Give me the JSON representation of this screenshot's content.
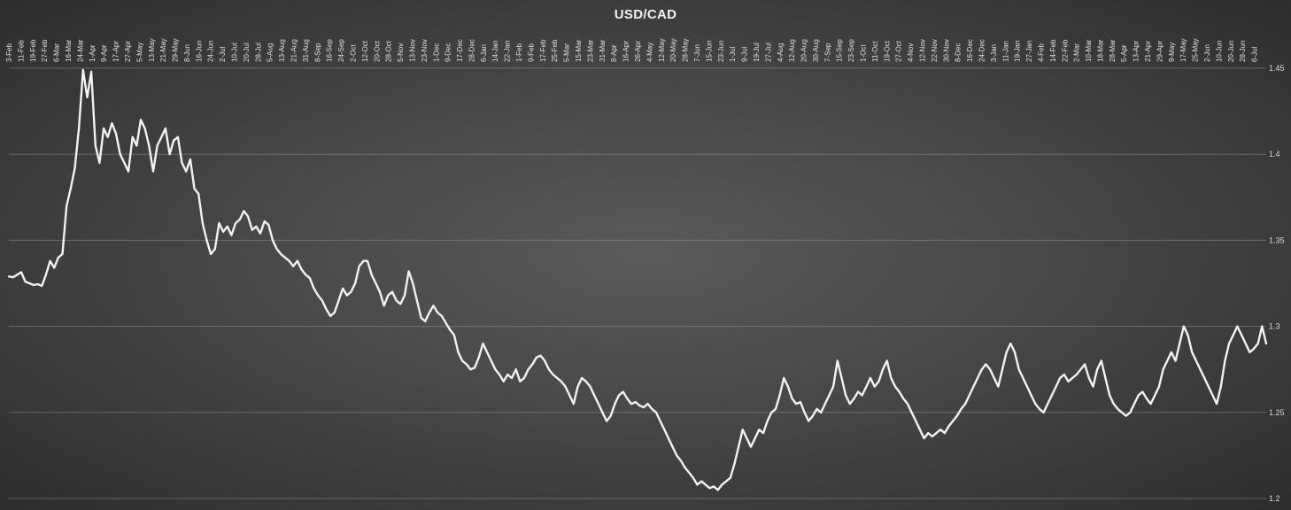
{
  "chart_data": {
    "type": "line",
    "title": "USD/CAD",
    "xlabel": "",
    "ylabel": "",
    "ylim": [
      1.2,
      1.45
    ],
    "y_ticks": [
      "1.2",
      "1.25",
      "1.3",
      "1.35",
      "1.4",
      "1.45"
    ],
    "y_axis_side": "right",
    "grid": true,
    "legend": "none",
    "x_tick_labels": [
      "3-Feb",
      "11-Feb",
      "19-Feb",
      "27-Feb",
      "6-Mar",
      "16-Mar",
      "24-Mar",
      "1-Apr",
      "9-Apr",
      "17-Apr",
      "27-Apr",
      "5-May",
      "13-May",
      "21-May",
      "29-May",
      "8-Jun",
      "16-Jun",
      "24-Jun",
      "2-Jul",
      "10-Jul",
      "20-Jul",
      "28-Jul",
      "5-Aug",
      "13-Aug",
      "21-Aug",
      "31-Aug",
      "8-Sep",
      "16-Sep",
      "24-Sep",
      "2-Oct",
      "12-Oct",
      "20-Oct",
      "28-Oct",
      "5-Nov",
      "13-Nov",
      "23-Nov",
      "1-Dec",
      "9-Dec",
      "17-Dec",
      "28-Dec",
      "6-Jan",
      "14-Jan",
      "22-Jan",
      "1-Feb",
      "9-Feb",
      "17-Feb",
      "25-Feb",
      "5-Mar",
      "15-Mar",
      "23-Mar",
      "31-Mar",
      "8-Apr",
      "16-Apr",
      "26-Apr",
      "4-May",
      "12-May",
      "20-May",
      "28-May",
      "7-Jun",
      "15-Jun",
      "23-Jun",
      "1-Jul",
      "9-Jul",
      "19-Jul",
      "27-Jul",
      "4-Aug",
      "12-Aug",
      "20-Aug",
      "30-Aug",
      "7-Sep",
      "15-Sep",
      "23-Sep",
      "1-Oct",
      "11-Oct",
      "19-Oct",
      "27-Oct",
      "4-Nov",
      "12-Nov",
      "22-Nov",
      "30-Nov",
      "8-Dec",
      "16-Dec",
      "24-Dec",
      "3-Jan",
      "11-Jan",
      "19-Jan",
      "27-Jan",
      "4-Feb",
      "14-Feb",
      "22-Feb",
      "2-Mar",
      "10-Mar",
      "18-Mar",
      "28-Mar",
      "5-Apr",
      "13-Apr",
      "21-Apr",
      "29-Apr",
      "9-May",
      "17-May",
      "25-May",
      "2-Jun",
      "10-Jun",
      "20-Jun",
      "28-Jun",
      "6-Jul"
    ],
    "series": [
      {
        "color": "#f2f2f2",
        "values": [
          1.329,
          1.3285,
          1.33,
          1.3315,
          1.326,
          1.325,
          1.324,
          1.3245,
          1.3235,
          1.33,
          1.338,
          1.334,
          1.34,
          1.342,
          1.37,
          1.38,
          1.392,
          1.415,
          1.449,
          1.433,
          1.448,
          1.405,
          1.395,
          1.415,
          1.41,
          1.418,
          1.412,
          1.4,
          1.395,
          1.39,
          1.41,
          1.405,
          1.42,
          1.415,
          1.405,
          1.39,
          1.405,
          1.41,
          1.415,
          1.4,
          1.408,
          1.41,
          1.395,
          1.39,
          1.397,
          1.38,
          1.377,
          1.36,
          1.35,
          1.342,
          1.345,
          1.36,
          1.355,
          1.358,
          1.353,
          1.36,
          1.362,
          1.367,
          1.364,
          1.356,
          1.358,
          1.354,
          1.361,
          1.359,
          1.35,
          1.345,
          1.342,
          1.34,
          1.338,
          1.335,
          1.338,
          1.333,
          1.33,
          1.328,
          1.322,
          1.318,
          1.315,
          1.31,
          1.306,
          1.308,
          1.315,
          1.322,
          1.318,
          1.32,
          1.325,
          1.335,
          1.338,
          1.338,
          1.33,
          1.325,
          1.32,
          1.312,
          1.318,
          1.32,
          1.315,
          1.313,
          1.318,
          1.332,
          1.325,
          1.315,
          1.305,
          1.303,
          1.308,
          1.312,
          1.308,
          1.306,
          1.302,
          1.298,
          1.295,
          1.285,
          1.28,
          1.278,
          1.275,
          1.276,
          1.282,
          1.29,
          1.285,
          1.28,
          1.275,
          1.272,
          1.268,
          1.272,
          1.27,
          1.275,
          1.268,
          1.27,
          1.275,
          1.278,
          1.282,
          1.283,
          1.28,
          1.275,
          1.272,
          1.27,
          1.268,
          1.265,
          1.26,
          1.255,
          1.265,
          1.27,
          1.268,
          1.265,
          1.26,
          1.255,
          1.25,
          1.245,
          1.248,
          1.255,
          1.26,
          1.262,
          1.258,
          1.255,
          1.256,
          1.254,
          1.253,
          1.255,
          1.252,
          1.25,
          1.245,
          1.24,
          1.235,
          1.23,
          1.225,
          1.222,
          1.218,
          1.215,
          1.212,
          1.208,
          1.21,
          1.208,
          1.206,
          1.207,
          1.205,
          1.208,
          1.21,
          1.212,
          1.22,
          1.23,
          1.24,
          1.235,
          1.23,
          1.235,
          1.24,
          1.238,
          1.245,
          1.25,
          1.252,
          1.26,
          1.27,
          1.265,
          1.258,
          1.255,
          1.256,
          1.25,
          1.245,
          1.248,
          1.252,
          1.25,
          1.255,
          1.26,
          1.265,
          1.28,
          1.27,
          1.26,
          1.255,
          1.258,
          1.262,
          1.26,
          1.265,
          1.27,
          1.265,
          1.268,
          1.275,
          1.28,
          1.27,
          1.265,
          1.262,
          1.258,
          1.255,
          1.25,
          1.245,
          1.24,
          1.235,
          1.238,
          1.236,
          1.238,
          1.24,
          1.238,
          1.242,
          1.245,
          1.248,
          1.252,
          1.255,
          1.26,
          1.265,
          1.27,
          1.275,
          1.278,
          1.275,
          1.27,
          1.265,
          1.275,
          1.285,
          1.29,
          1.285,
          1.275,
          1.27,
          1.265,
          1.26,
          1.255,
          1.252,
          1.25,
          1.255,
          1.26,
          1.265,
          1.27,
          1.272,
          1.268,
          1.27,
          1.272,
          1.275,
          1.278,
          1.27,
          1.265,
          1.275,
          1.28,
          1.27,
          1.26,
          1.255,
          1.252,
          1.25,
          1.248,
          1.25,
          1.255,
          1.26,
          1.262,
          1.258,
          1.255,
          1.26,
          1.265,
          1.275,
          1.28,
          1.285,
          1.28,
          1.29,
          1.3,
          1.295,
          1.285,
          1.28,
          1.275,
          1.27,
          1.265,
          1.26,
          1.255,
          1.265,
          1.28,
          1.29,
          1.295,
          1.3,
          1.295,
          1.29,
          1.285,
          1.287,
          1.29,
          1.3,
          1.29
        ]
      }
    ]
  }
}
